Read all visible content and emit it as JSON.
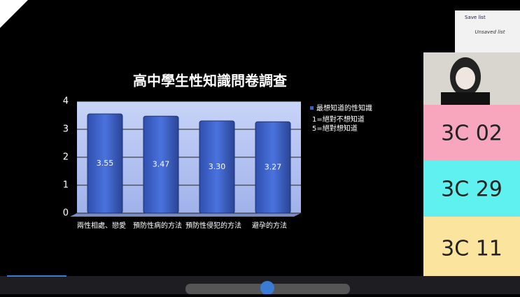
{
  "chart_data": {
    "type": "bar",
    "title": "高中學生性知識問卷調查",
    "categories": [
      "兩性相處、戀愛",
      "預防性病的方法",
      "預防性侵犯的方法",
      "避孕的方法"
    ],
    "series": [
      {
        "name": "最想知道的性知識",
        "color": "#3a5fc8",
        "values": [
          3.55,
          3.47,
          3.3,
          3.27
        ],
        "value_labels": [
          "3.55",
          "3.47",
          "3.30",
          "3.27"
        ]
      }
    ],
    "notes": [
      "1=絕對不想知道",
      "5=絕對想知道"
    ],
    "ylim": [
      0,
      4
    ],
    "yticks": [
      0,
      1,
      2,
      3,
      4
    ],
    "grid": true,
    "legend": "right"
  },
  "participants": [
    "3C 02",
    "3C 29",
    "3C 11"
  ],
  "playlist": {
    "save": "Save list",
    "title": "Unsaved list"
  }
}
